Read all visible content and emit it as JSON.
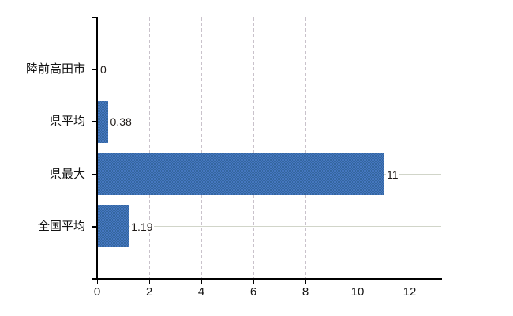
{
  "chart_data": {
    "type": "bar",
    "orientation": "horizontal",
    "title": "",
    "xlabel": "",
    "ylabel": "",
    "categories": [
      "陸前高田市",
      "県平均",
      "県最大",
      "全国平均"
    ],
    "values": [
      0,
      0.38,
      11,
      1.19
    ],
    "value_labels": [
      "0",
      "0.38",
      "11",
      "1.19"
    ],
    "x_ticks": [
      0,
      2,
      4,
      6,
      8,
      10,
      12
    ],
    "x_tick_labels": [
      "0",
      "2",
      "4",
      "6",
      "8",
      "10",
      "12"
    ],
    "xlim": [
      0,
      13.2
    ],
    "legend": "none",
    "grid": {
      "horizontal": "solid line at each category center",
      "vertical": "dashed line at each x tick",
      "top_border": "dashed"
    },
    "colors": {
      "bar": "#3d6eb1",
      "bar_dither_dark": "#34669f",
      "bar_dither_light": "#4577c0",
      "axis": "#000000",
      "h_gridline": "#d1d5c9",
      "v_gridline": "#c9c2cb",
      "text": "#141414",
      "background": "#ffffff"
    }
  }
}
